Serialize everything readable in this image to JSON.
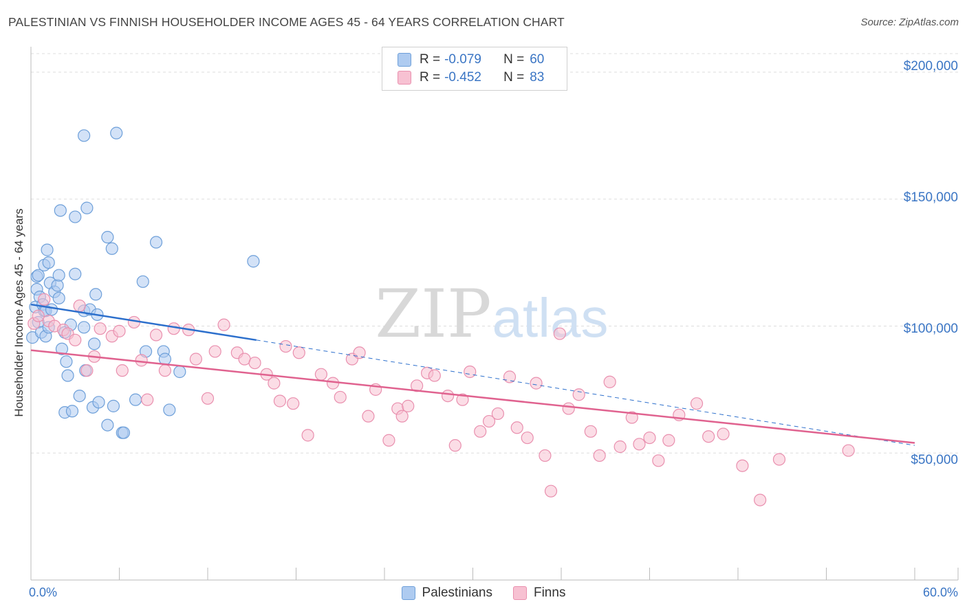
{
  "title": "PALESTINIAN VS FINNISH HOUSEHOLDER INCOME AGES 45 - 64 YEARS CORRELATION CHART",
  "source": "Source: ZipAtlas.com",
  "watermark": {
    "zip": "ZIP",
    "atlas": "atlas"
  },
  "stats": {
    "palestinians": {
      "r_label": "R = ",
      "r_value": "-0.079",
      "n_label": "N = ",
      "n_value": "60"
    },
    "finns": {
      "r_label": "R = ",
      "r_value": "-0.452",
      "n_label": "N = ",
      "n_value": "83"
    }
  },
  "legend": {
    "palestinians": "Palestinians",
    "finns": "Finns"
  },
  "colors": {
    "pal_fill": "#aecbf0",
    "pal_stroke": "#6d9fd9",
    "pal_line": "#2c6fcc",
    "fin_fill": "#f7c1d2",
    "fin_stroke": "#e98fae",
    "fin_line": "#e0628f",
    "accent_text": "#3a75c4",
    "grid": "#dddddd"
  },
  "chart_data": {
    "type": "scatter",
    "title": "PALESTINIAN VS FINNISH HOUSEHOLDER INCOME AGES 45 - 64 YEARS CORRELATION CHART",
    "xlabel": "",
    "ylabel": "Householder Income Ages 45 - 64 years",
    "xlim": [
      0,
      60
    ],
    "ylim": [
      0,
      210000
    ],
    "x_tick_labels": {
      "min": "0.0%",
      "max": "60.0%"
    },
    "y_ticks": [
      {
        "value": 50000,
        "label": "$50,000"
      },
      {
        "value": 100000,
        "label": "$100,000"
      },
      {
        "value": 150000,
        "label": "$150,000"
      },
      {
        "value": 200000,
        "label": "$200,000"
      }
    ],
    "series": [
      {
        "name": "Palestinians",
        "points": [
          [
            0.1,
            95500
          ],
          [
            0.3,
            107500
          ],
          [
            0.4,
            114500
          ],
          [
            0.4,
            119500
          ],
          [
            0.5,
            120000
          ],
          [
            0.5,
            101500
          ],
          [
            0.6,
            111500
          ],
          [
            0.7,
            97500
          ],
          [
            0.8,
            108500
          ],
          [
            0.9,
            106000
          ],
          [
            0.9,
            124000
          ],
          [
            1.0,
            96000
          ],
          [
            1.0,
            106000
          ],
          [
            1.1,
            130000
          ],
          [
            1.2,
            99500
          ],
          [
            1.2,
            125000
          ],
          [
            1.3,
            117000
          ],
          [
            1.4,
            106500
          ],
          [
            1.6,
            113500
          ],
          [
            1.8,
            116000
          ],
          [
            1.9,
            111000
          ],
          [
            1.9,
            120000
          ],
          [
            2.0,
            145500
          ],
          [
            2.1,
            91000
          ],
          [
            2.3,
            97500
          ],
          [
            2.3,
            66000
          ],
          [
            2.4,
            86000
          ],
          [
            2.5,
            80500
          ],
          [
            2.8,
            66500
          ],
          [
            2.7,
            100500
          ],
          [
            3.0,
            143000
          ],
          [
            3.0,
            120500
          ],
          [
            3.3,
            72500
          ],
          [
            3.6,
            175000
          ],
          [
            3.6,
            99500
          ],
          [
            3.6,
            106000
          ],
          [
            3.8,
            146500
          ],
          [
            3.7,
            82500
          ],
          [
            4.0,
            106500
          ],
          [
            4.3,
            93000
          ],
          [
            4.2,
            68000
          ],
          [
            4.4,
            112500
          ],
          [
            4.5,
            104500
          ],
          [
            4.6,
            70000
          ],
          [
            5.2,
            135000
          ],
          [
            5.2,
            61000
          ],
          [
            5.5,
            130500
          ],
          [
            5.6,
            68500
          ],
          [
            5.8,
            176000
          ],
          [
            6.2,
            58000
          ],
          [
            6.3,
            58000
          ],
          [
            7.1,
            71000
          ],
          [
            7.6,
            117500
          ],
          [
            7.8,
            90000
          ],
          [
            8.5,
            133000
          ],
          [
            9.0,
            90000
          ],
          [
            9.1,
            87000
          ],
          [
            9.4,
            67000
          ],
          [
            10.1,
            82000
          ],
          [
            15.1,
            125500
          ]
        ]
      },
      {
        "name": "Finns",
        "points": [
          [
            0.2,
            101000
          ],
          [
            0.5,
            104000
          ],
          [
            0.9,
            110500
          ],
          [
            1.2,
            102000
          ],
          [
            1.6,
            100000
          ],
          [
            2.2,
            98500
          ],
          [
            2.5,
            97000
          ],
          [
            3.0,
            94500
          ],
          [
            3.3,
            108000
          ],
          [
            3.8,
            82500
          ],
          [
            4.3,
            88000
          ],
          [
            4.7,
            99000
          ],
          [
            5.5,
            96000
          ],
          [
            6.0,
            98000
          ],
          [
            6.2,
            82500
          ],
          [
            7.0,
            101500
          ],
          [
            7.5,
            86500
          ],
          [
            7.9,
            71000
          ],
          [
            8.5,
            96500
          ],
          [
            9.1,
            82500
          ],
          [
            9.7,
            99000
          ],
          [
            10.7,
            98500
          ],
          [
            11.2,
            87000
          ],
          [
            12.0,
            71500
          ],
          [
            12.5,
            90000
          ],
          [
            13.1,
            100500
          ],
          [
            14.0,
            89500
          ],
          [
            14.5,
            87000
          ],
          [
            15.2,
            85500
          ],
          [
            16.0,
            81000
          ],
          [
            16.5,
            77500
          ],
          [
            16.9,
            70500
          ],
          [
            17.3,
            92000
          ],
          [
            17.8,
            69500
          ],
          [
            18.2,
            89500
          ],
          [
            18.8,
            57000
          ],
          [
            19.7,
            81000
          ],
          [
            20.5,
            77500
          ],
          [
            21.0,
            72000
          ],
          [
            21.8,
            87000
          ],
          [
            22.3,
            89500
          ],
          [
            22.9,
            64500
          ],
          [
            23.4,
            75000
          ],
          [
            24.3,
            55000
          ],
          [
            24.9,
            67500
          ],
          [
            25.2,
            64500
          ],
          [
            25.6,
            68500
          ],
          [
            26.2,
            76500
          ],
          [
            26.9,
            81500
          ],
          [
            27.4,
            80500
          ],
          [
            28.3,
            72500
          ],
          [
            28.8,
            53000
          ],
          [
            29.3,
            71000
          ],
          [
            29.8,
            82000
          ],
          [
            30.5,
            58500
          ],
          [
            31.1,
            62500
          ],
          [
            31.7,
            65500
          ],
          [
            32.5,
            80000
          ],
          [
            33.0,
            60000
          ],
          [
            33.7,
            56000
          ],
          [
            34.3,
            77500
          ],
          [
            34.9,
            49000
          ],
          [
            35.3,
            35000
          ],
          [
            35.9,
            97000
          ],
          [
            36.5,
            67500
          ],
          [
            37.2,
            73000
          ],
          [
            38.0,
            58500
          ],
          [
            38.6,
            49000
          ],
          [
            39.3,
            78000
          ],
          [
            40.0,
            52500
          ],
          [
            40.8,
            64000
          ],
          [
            41.3,
            53500
          ],
          [
            42.0,
            56000
          ],
          [
            42.6,
            47000
          ],
          [
            43.3,
            55000
          ],
          [
            44.0,
            65000
          ],
          [
            45.2,
            69500
          ],
          [
            46.0,
            56500
          ],
          [
            47.0,
            57500
          ],
          [
            48.3,
            45000
          ],
          [
            49.5,
            31500
          ],
          [
            50.8,
            47500
          ],
          [
            55.5,
            51000
          ]
        ]
      }
    ],
    "trend_lines": [
      {
        "series": "Palestinians",
        "solid": [
          [
            0,
            108500
          ],
          [
            15.3,
            94500
          ]
        ],
        "dashed": [
          [
            15.3,
            94500
          ],
          [
            60,
            53000
          ]
        ]
      },
      {
        "series": "Finns",
        "solid": [
          [
            0,
            90500
          ],
          [
            60,
            54000
          ]
        ]
      }
    ]
  }
}
